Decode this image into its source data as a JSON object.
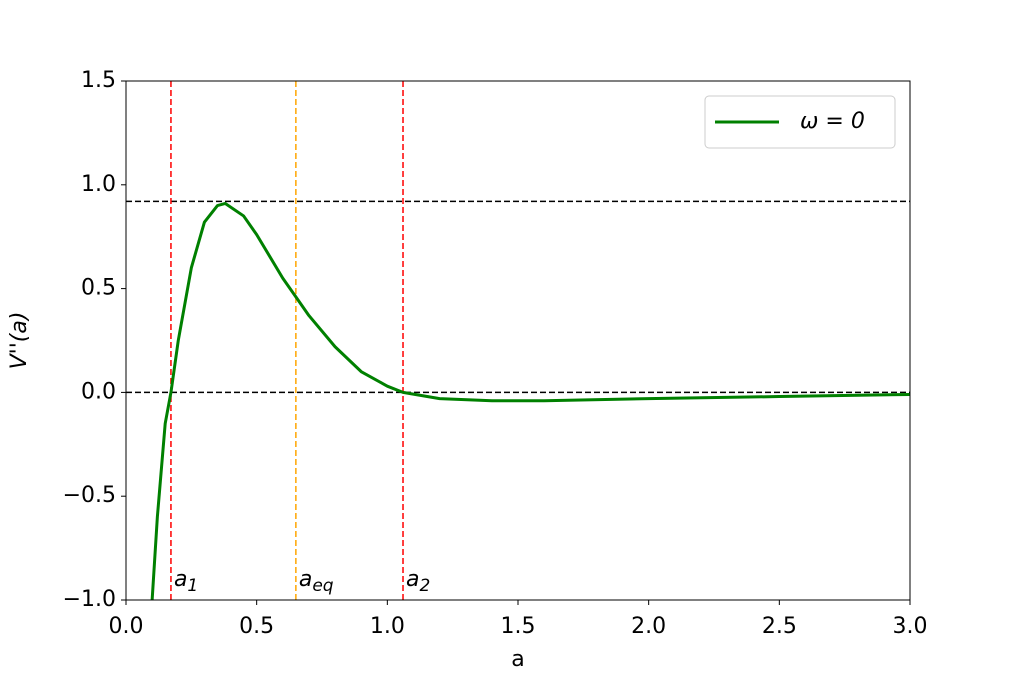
{
  "chart_data": {
    "type": "line",
    "x_label": "a",
    "y_label": "V''(a)",
    "xlim": [
      0,
      3
    ],
    "ylim": [
      -1,
      1.5
    ],
    "xticks": [
      {
        "value": 0,
        "label": "0.0"
      },
      {
        "value": 0.5,
        "label": "0.5"
      },
      {
        "value": 1,
        "label": "1.0"
      },
      {
        "value": 1.5,
        "label": "1.5"
      },
      {
        "value": 2,
        "label": "2.0"
      },
      {
        "value": 2.5,
        "label": "2.5"
      },
      {
        "value": 3,
        "label": "3.0"
      }
    ],
    "yticks": [
      {
        "value": -1,
        "label": "−1.0"
      },
      {
        "value": -0.5,
        "label": "−0.5"
      },
      {
        "value": 0,
        "label": "0.0"
      },
      {
        "value": 0.5,
        "label": "0.5"
      },
      {
        "value": 1,
        "label": "1.0"
      },
      {
        "value": 1.5,
        "label": "1.5"
      }
    ],
    "legend": "upper right",
    "series": [
      {
        "name": "ω = 0",
        "color": "#008000",
        "x": [
          0.1,
          0.12,
          0.15,
          0.172,
          0.2,
          0.25,
          0.3,
          0.35,
          0.38,
          0.45,
          0.5,
          0.6,
          0.65,
          0.7,
          0.8,
          0.9,
          1.0,
          1.06,
          1.2,
          1.4,
          1.6,
          2.0,
          2.5,
          3.0
        ],
        "values": [
          -1.0,
          -0.6,
          -0.15,
          0,
          0.25,
          0.6,
          0.82,
          0.9,
          0.91,
          0.85,
          0.76,
          0.55,
          0.46,
          0.37,
          0.22,
          0.1,
          0.03,
          0,
          -0.03,
          -0.04,
          -0.04,
          -0.03,
          -0.02,
          -0.01
        ]
      }
    ],
    "hlines": [
      {
        "y": 0.92,
        "color": "#000000"
      },
      {
        "y": 0,
        "color": "#000000"
      }
    ],
    "vlines": [
      {
        "x": 0.172,
        "label": "a",
        "sub": "1",
        "color": "#ff0000"
      },
      {
        "x": 0.65,
        "label": "a",
        "sub": "eq",
        "color": "#ffa500"
      },
      {
        "x": 1.06,
        "label": "a",
        "sub": "2",
        "color": "#ff0000"
      }
    ]
  }
}
